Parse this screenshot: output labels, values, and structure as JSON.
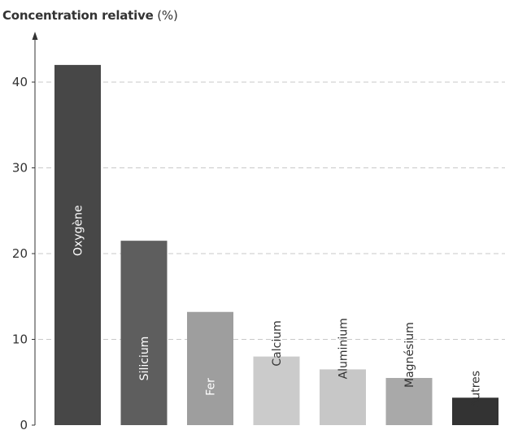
{
  "chart_data": {
    "type": "bar",
    "title": "Concentration relative",
    "title_unit": "(%)",
    "ylim": [
      0,
      45
    ],
    "yticks": [
      0,
      10,
      20,
      30,
      40
    ],
    "yticks_labels": [
      "0",
      "10",
      "20",
      "30",
      "40"
    ],
    "grid": "horizontal dashed",
    "categories": [
      "Oxygène",
      "Silicium",
      "Fer",
      "Calcium",
      "Aluminium",
      "Magnésium",
      "Autres"
    ],
    "values": [
      42,
      21.5,
      13.2,
      8,
      6.5,
      5.5,
      3.2
    ],
    "colors": [
      "#474747",
      "#5e5e5e",
      "#9e9e9e",
      "#cbcbcb",
      "#c7c7c7",
      "#a9a9a9",
      "#333333"
    ],
    "label_colors": [
      "#ffffff",
      "#ffffff",
      "#ffffff",
      "#333333",
      "#333333",
      "#333333",
      "#333333"
    ]
  }
}
